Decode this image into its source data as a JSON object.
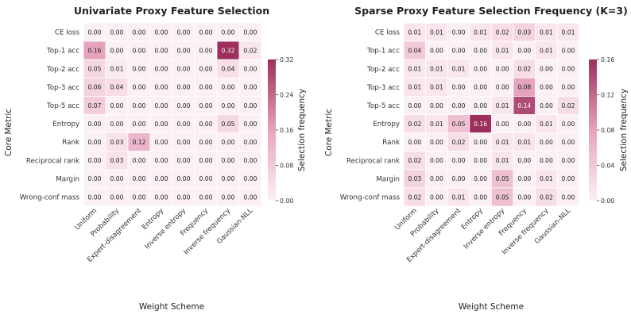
{
  "chart_data": [
    {
      "type": "heatmap",
      "title": "Univariate Proxy Feature Selection",
      "xlabel": "Weight Scheme",
      "ylabel": "Core Metric",
      "colorbar_label": "Selection frequency",
      "colorbar_ticks": [
        "0.00",
        "0.08",
        "0.16",
        "0.24",
        "0.32"
      ],
      "vmin": 0,
      "vmax": 0.32,
      "x_categories": [
        "Uniform",
        "Probability",
        "Expert-disagreement",
        "Entropy",
        "Inverse entropy",
        "Frequency",
        "Inverse frequency",
        "Gaussian-NLL"
      ],
      "y_categories": [
        "CE loss",
        "Top-1 acc",
        "Top-2 acc",
        "Top-3 acc",
        "Top-5 acc",
        "Entropy",
        "Rank",
        "Reciprocal rank",
        "Margin",
        "Wrong-conf mass"
      ],
      "values": [
        [
          0.0,
          0.0,
          0.0,
          0.0,
          0.0,
          0.0,
          0.0,
          0.0
        ],
        [
          0.16,
          0.0,
          0.0,
          0.0,
          0.0,
          0.0,
          0.32,
          0.02
        ],
        [
          0.05,
          0.01,
          0.0,
          0.0,
          0.0,
          0.0,
          0.04,
          0.0
        ],
        [
          0.06,
          0.04,
          0.0,
          0.0,
          0.0,
          0.0,
          0.0,
          0.0
        ],
        [
          0.07,
          0.0,
          0.0,
          0.0,
          0.0,
          0.0,
          0.0,
          0.0
        ],
        [
          0.0,
          0.0,
          0.0,
          0.0,
          0.0,
          0.0,
          0.05,
          0.0
        ],
        [
          0.0,
          0.03,
          0.12,
          0.0,
          0.0,
          0.0,
          0.0,
          0.0
        ],
        [
          0.0,
          0.03,
          0.0,
          0.0,
          0.0,
          0.0,
          0.0,
          0.0
        ],
        [
          0.0,
          0.0,
          0.0,
          0.0,
          0.0,
          0.0,
          0.0,
          0.0
        ],
        [
          0.0,
          0.0,
          0.0,
          0.0,
          0.0,
          0.0,
          0.0,
          0.0
        ]
      ]
    },
    {
      "type": "heatmap",
      "title": "Sparse Proxy Feature Selection Frequency  (K=3)",
      "xlabel": "Weight Scheme",
      "ylabel": "Core Metric",
      "colorbar_label": "Selection frequency",
      "colorbar_ticks": [
        "0.00",
        "0.04",
        "0.08",
        "0.12",
        "0.16"
      ],
      "vmin": 0,
      "vmax": 0.16,
      "x_categories": [
        "Uniform",
        "Probability",
        "Expert-disagreement",
        "Entropy",
        "Inverse entropy",
        "Frequency",
        "Inverse frequency",
        "Gaussian-NLL"
      ],
      "y_categories": [
        "CE loss",
        "Top-1 acc",
        "Top-2 acc",
        "Top-3 acc",
        "Top-5 acc",
        "Entropy",
        "Rank",
        "Reciprocal rank",
        "Margin",
        "Wrong-conf mass"
      ],
      "values": [
        [
          0.01,
          0.01,
          0.0,
          0.01,
          0.02,
          0.03,
          0.01,
          0.01
        ],
        [
          0.04,
          0.0,
          0.0,
          0.0,
          0.01,
          0.0,
          0.01,
          0.0
        ],
        [
          0.01,
          0.01,
          0.01,
          0.0,
          0.0,
          0.02,
          0.0,
          0.0
        ],
        [
          0.01,
          0.01,
          0.0,
          0.0,
          0.0,
          0.08,
          0.0,
          0.0
        ],
        [
          0.0,
          0.0,
          0.0,
          0.0,
          0.01,
          0.14,
          0.0,
          0.02
        ],
        [
          0.02,
          0.01,
          0.05,
          0.16,
          0.0,
          0.0,
          0.01,
          0.0
        ],
        [
          0.0,
          0.0,
          0.02,
          0.0,
          0.01,
          0.01,
          0.0,
          0.0
        ],
        [
          0.02,
          0.0,
          0.0,
          0.0,
          0.01,
          0.0,
          0.0,
          0.0
        ],
        [
          0.03,
          0.0,
          0.0,
          0.0,
          0.05,
          0.0,
          0.01,
          0.0
        ],
        [
          0.02,
          0.0,
          0.01,
          0.0,
          0.05,
          0.0,
          0.02,
          0.0
        ]
      ]
    }
  ],
  "colors": {
    "low": "#fbf0f3",
    "mid": "#e6a3bd",
    "high": "#9c2f5c"
  }
}
